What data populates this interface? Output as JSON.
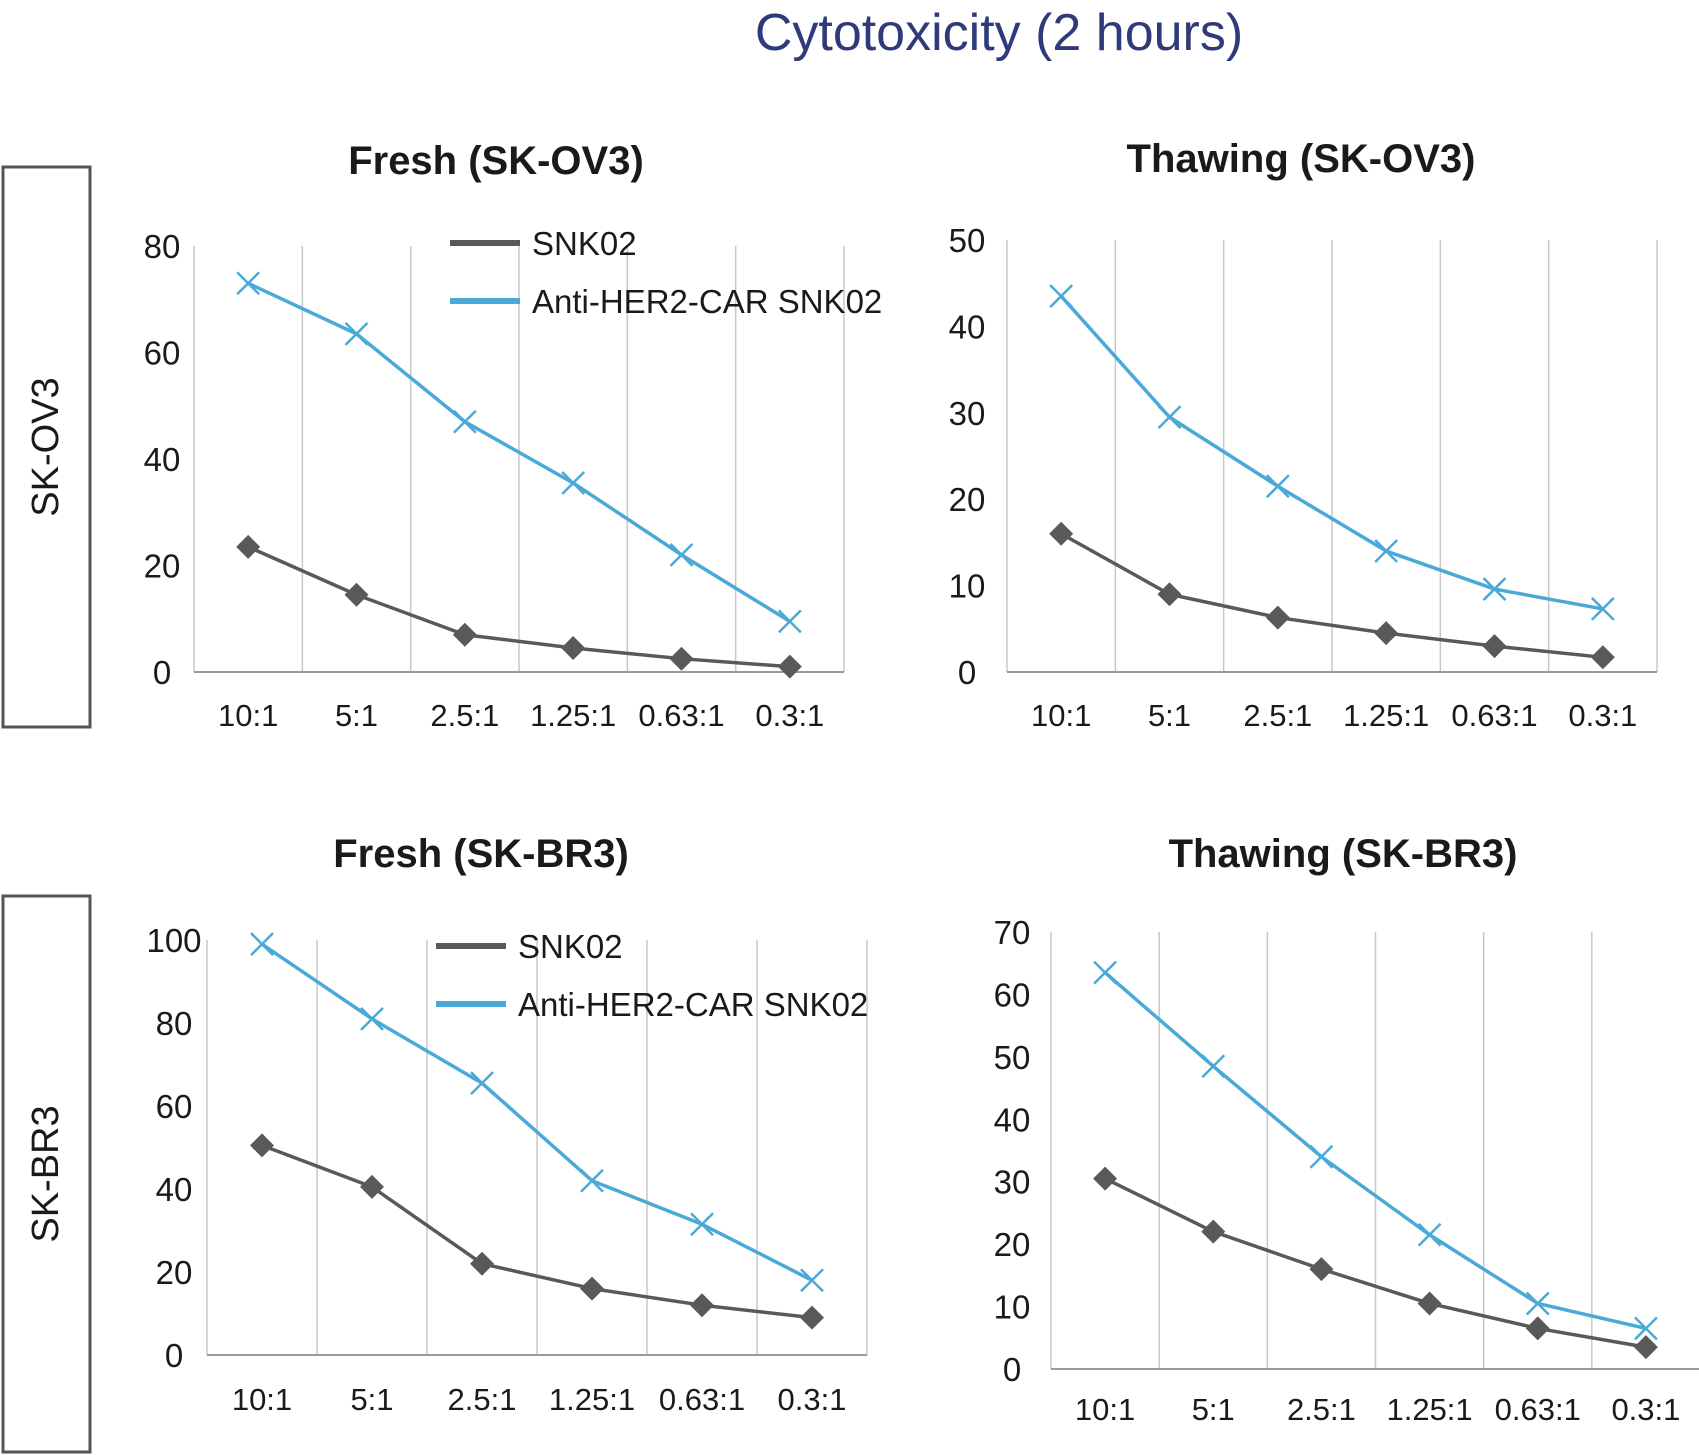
{
  "figure": {
    "title": "Cytotoxicity (2 hours)",
    "row_labels": [
      "SK-OV3",
      "SK-BR3"
    ]
  },
  "colors": {
    "title": "#2f3a7a",
    "snk02": "#595959",
    "car": "#4aa9d6",
    "grid": "#c8c8c8",
    "axis": "#9a9a9a",
    "text": "#1a1a1a",
    "box": "#555555"
  },
  "chart_data": [
    {
      "type": "line",
      "title": "Fresh (SK-OV3)",
      "categories": [
        "10:1",
        "5:1",
        "2.5:1",
        "1.25:1",
        "0.63:1",
        "0.3:1"
      ],
      "ylim": [
        0,
        80
      ],
      "yticks": [
        0,
        20,
        40,
        60,
        80
      ],
      "legend": "top-right",
      "series": [
        {
          "name": "SNK02",
          "marker": "diamond",
          "values": [
            23.5,
            14.5,
            7,
            4.5,
            2.5,
            1
          ]
        },
        {
          "name": "Anti-HER2-CAR SNK02",
          "marker": "x",
          "values": [
            73,
            63.5,
            47,
            35.5,
            22,
            9.5
          ]
        }
      ]
    },
    {
      "type": "line",
      "title": "Thawing (SK-OV3)",
      "categories": [
        "10:1",
        "5:1",
        "2.5:1",
        "1.25:1",
        "0.63:1",
        "0.3:1"
      ],
      "ylim": [
        0,
        50
      ],
      "yticks": [
        0,
        10,
        20,
        30,
        40,
        50
      ],
      "legend": "none",
      "series": [
        {
          "name": "SNK02",
          "marker": "diamond",
          "values": [
            16,
            9,
            6.3,
            4.5,
            3,
            1.7
          ]
        },
        {
          "name": "Anti-HER2-CAR SNK02",
          "marker": "x",
          "values": [
            43.5,
            29.5,
            21.5,
            14,
            9.6,
            7.3
          ]
        }
      ]
    },
    {
      "type": "line",
      "title": "Fresh (SK-BR3)",
      "categories": [
        "10:1",
        "5:1",
        "2.5:1",
        "1.25:1",
        "0.63:1",
        "0.3:1"
      ],
      "ylim": [
        0,
        100
      ],
      "yticks": [
        0,
        20,
        40,
        60,
        80,
        100
      ],
      "legend": "top-right",
      "series": [
        {
          "name": "SNK02",
          "marker": "diamond",
          "values": [
            50.5,
            40.5,
            22,
            16,
            12,
            9
          ]
        },
        {
          "name": "Anti-HER2-CAR SNK02",
          "marker": "x",
          "values": [
            99,
            81,
            65.5,
            42,
            31.5,
            18
          ]
        }
      ]
    },
    {
      "type": "line",
      "title": "Thawing (SK-BR3)",
      "categories": [
        "10:1",
        "5:1",
        "2.5:1",
        "1.25:1",
        "0.63:1",
        "0.3:1"
      ],
      "ylim": [
        0,
        70
      ],
      "yticks": [
        0,
        10,
        20,
        30,
        40,
        50,
        60,
        70
      ],
      "legend": "none",
      "series": [
        {
          "name": "SNK02",
          "marker": "diamond",
          "values": [
            30.5,
            22,
            16,
            10.5,
            6.5,
            3.5
          ]
        },
        {
          "name": "Anti-HER2-CAR SNK02",
          "marker": "x",
          "values": [
            63.5,
            48.5,
            34,
            21.5,
            10.5,
            6.5
          ]
        }
      ]
    }
  ]
}
